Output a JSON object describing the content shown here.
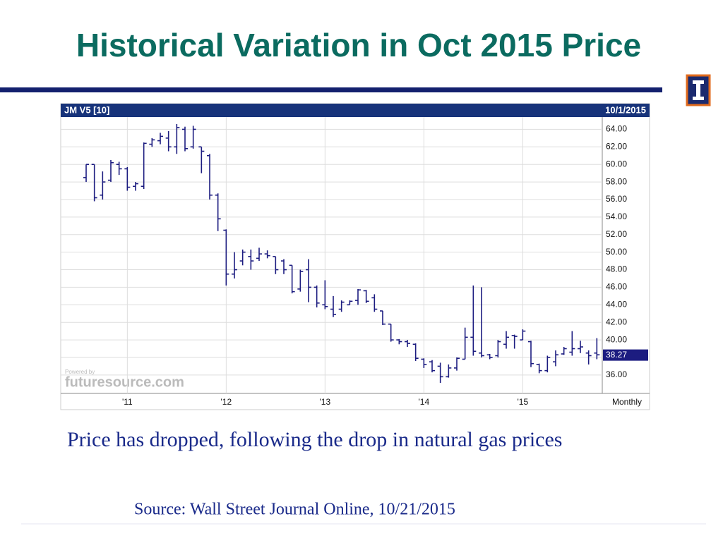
{
  "title": "Historical Variation in Oct 2015 Price",
  "caption": "Price has dropped, following the drop in natural gas prices",
  "source": "Source: Wall Street Journal Online, 10/21/2015",
  "chart_data": {
    "type": "ohlc",
    "symbol": "JM V5 [10]",
    "date": "10/1/2015",
    "period": "Monthly",
    "watermark": "futuresource.com",
    "watermark_note": "Powered by",
    "color": "#1c1c80",
    "grid": true,
    "last_price": 38.27,
    "categories": [
      null,
      null,
      null,
      null,
      null,
      "'11",
      null,
      null,
      null,
      null,
      null,
      null,
      null,
      null,
      null,
      null,
      null,
      "'12",
      null,
      null,
      null,
      null,
      null,
      null,
      null,
      null,
      null,
      null,
      null,
      "'13",
      null,
      null,
      null,
      null,
      null,
      null,
      null,
      null,
      null,
      null,
      null,
      "'14",
      null,
      null,
      null,
      null,
      null,
      null,
      null,
      null,
      null,
      null,
      null,
      "'15",
      null,
      null,
      null,
      null,
      null,
      null,
      null,
      null,
      null
    ],
    "open": [
      58.5,
      60.0,
      56.5,
      58.2,
      60.0,
      59.5,
      57.5,
      57.5,
      62.3,
      62.7,
      63.0,
      62.0,
      64.0,
      62.0,
      62.0,
      61.0,
      56.5,
      52.5,
      47.5,
      49.0,
      49.5,
      49.3,
      49.8,
      49.5,
      49.0,
      48.5,
      45.8,
      48.0,
      46.0,
      44.0,
      43.5,
      43.5,
      44.0,
      44.5,
      45.6,
      44.8,
      43.3,
      41.8,
      40.0,
      39.8,
      39.5,
      37.8,
      37.5,
      37.0,
      35.8,
      36.8,
      37.8,
      40.3,
      38.5,
      38.3,
      38.2,
      39.5,
      40.5,
      40.0,
      39.8,
      37.2,
      36.5,
      37.5,
      38.4,
      38.6,
      39.0,
      38.5,
      38.5
    ],
    "high": [
      60.0,
      60.0,
      59.2,
      60.5,
      60.3,
      59.7,
      58.0,
      62.5,
      63.0,
      63.6,
      63.8,
      64.6,
      64.3,
      64.4,
      62.0,
      61.2,
      56.7,
      52.6,
      50.0,
      50.3,
      50.3,
      50.5,
      50.2,
      49.5,
      49.2,
      48.5,
      48.0,
      49.2,
      46.2,
      46.8,
      45.0,
      44.5,
      44.5,
      45.8,
      45.7,
      45.2,
      43.3,
      41.8,
      40.1,
      40.0,
      39.6,
      37.9,
      37.7,
      37.4,
      37.2,
      38.0,
      41.4,
      46.2,
      46.0,
      38.4,
      40.0,
      41.0,
      40.6,
      41.2,
      39.9,
      37.3,
      38.2,
      38.8,
      39.2,
      41.0,
      39.9,
      38.8,
      40.2
    ],
    "low": [
      58.0,
      55.8,
      56.0,
      58.0,
      58.8,
      57.0,
      57.0,
      57.2,
      62.0,
      62.3,
      61.5,
      61.2,
      61.5,
      61.8,
      59.0,
      56.0,
      52.4,
      46.2,
      47.0,
      48.5,
      48.0,
      49.0,
      49.3,
      47.5,
      47.5,
      45.3,
      45.5,
      44.3,
      43.7,
      43.5,
      42.6,
      43.2,
      44.0,
      44.0,
      44.2,
      43.2,
      41.7,
      39.8,
      39.5,
      39.2,
      37.6,
      36.8,
      36.3,
      35.1,
      35.7,
      36.5,
      37.8,
      38.2,
      38.0,
      37.8,
      38.0,
      39.0,
      39.0,
      40.0,
      36.9,
      36.2,
      36.3,
      37.0,
      38.3,
      38.2,
      38.5,
      37.2,
      37.8
    ],
    "close": [
      60.0,
      56.2,
      58.0,
      60.2,
      59.5,
      57.4,
      57.8,
      62.4,
      62.8,
      63.2,
      62.0,
      64.2,
      61.8,
      64.0,
      61.5,
      56.5,
      53.8,
      47.5,
      48.0,
      50.0,
      49.0,
      49.8,
      49.6,
      48.0,
      48.0,
      45.5,
      47.8,
      46.0,
      44.2,
      43.8,
      42.9,
      44.3,
      44.4,
      45.7,
      44.4,
      43.5,
      41.8,
      40.0,
      39.8,
      39.6,
      37.9,
      37.2,
      36.5,
      35.8,
      36.8,
      37.9,
      40.3,
      38.7,
      38.2,
      38.0,
      39.8,
      40.3,
      40.4,
      41.0,
      37.3,
      36.5,
      38.0,
      38.3,
      39.0,
      39.0,
      39.2,
      38.2,
      38.3
    ],
    "ylim": [
      33.9,
      65.4
    ],
    "yticks": [
      {
        "value": 36,
        "label": "36.00"
      },
      {
        "value": 38,
        "label": "38.00"
      },
      {
        "value": 40,
        "label": "40.00"
      },
      {
        "value": 42,
        "label": "42.00"
      },
      {
        "value": 44,
        "label": "44.00"
      },
      {
        "value": 46,
        "label": "46.00"
      },
      {
        "value": 48,
        "label": "48.00"
      },
      {
        "value": 50,
        "label": "50.00"
      },
      {
        "value": 52,
        "label": "52.00"
      },
      {
        "value": 54,
        "label": "54.00"
      },
      {
        "value": 56,
        "label": "56.00"
      },
      {
        "value": 58,
        "label": "58.00"
      },
      {
        "value": 60,
        "label": "60.00"
      },
      {
        "value": 62,
        "label": "62.00"
      },
      {
        "value": 64,
        "label": "64.00"
      }
    ]
  }
}
